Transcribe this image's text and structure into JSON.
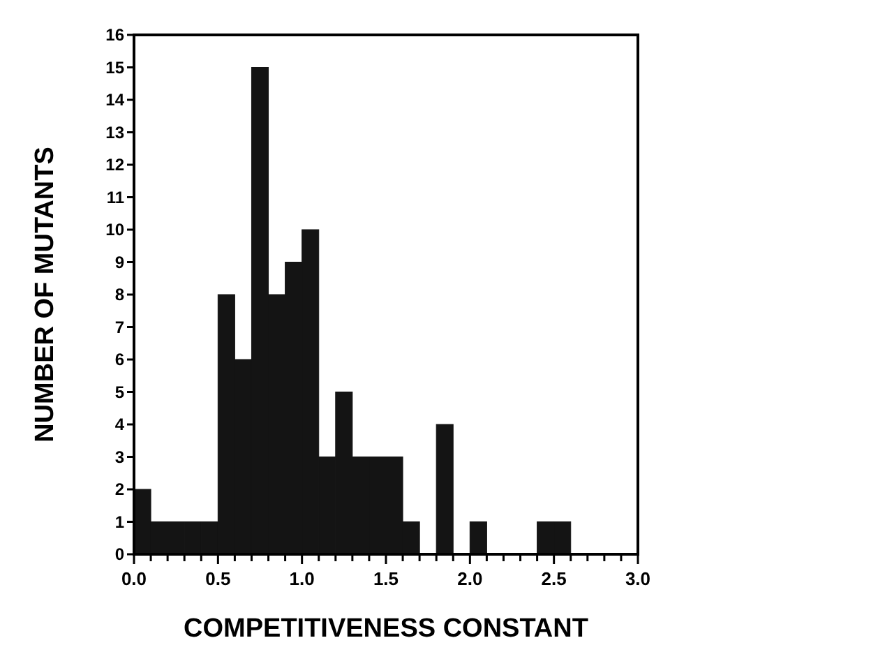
{
  "chart_data": {
    "type": "histogram",
    "xlabel": "COMPETITIVENESS CONSTANT",
    "ylabel": "NUMBER OF MUTANTS",
    "color": "#141414",
    "bins": [
      0,
      0.1,
      0.2,
      0.3,
      0.4,
      0.5,
      0.6,
      0.7,
      0.8,
      0.9,
      1.0,
      1.1,
      1.2,
      1.3,
      1.4,
      1.5,
      1.6,
      1.7,
      1.8,
      1.9,
      2.0,
      2.1,
      2.2,
      2.3,
      2.4,
      2.5,
      2.6,
      2.7,
      2.8,
      2.9,
      3.0
    ],
    "values": [
      2,
      1,
      1,
      1,
      1,
      8,
      6,
      15,
      8,
      9,
      10,
      3,
      5,
      3,
      3,
      3,
      1,
      0,
      4,
      0,
      1,
      0,
      0,
      0,
      1,
      1,
      0,
      0,
      0,
      0
    ],
    "xlim": [
      0,
      3.0
    ],
    "xticks": [
      {
        "value": 0,
        "label": "0.0"
      },
      {
        "value": 0.1,
        "label": null
      },
      {
        "value": 0.2,
        "label": null
      },
      {
        "value": 0.3,
        "label": null
      },
      {
        "value": 0.4,
        "label": null
      },
      {
        "value": 0.5,
        "label": "0.5"
      },
      {
        "value": 0.6,
        "label": null
      },
      {
        "value": 0.7,
        "label": null
      },
      {
        "value": 0.8,
        "label": null
      },
      {
        "value": 0.9,
        "label": null
      },
      {
        "value": 1.0,
        "label": "1.0"
      },
      {
        "value": 1.1,
        "label": null
      },
      {
        "value": 1.2,
        "label": null
      },
      {
        "value": 1.3,
        "label": null
      },
      {
        "value": 1.4,
        "label": null
      },
      {
        "value": 1.5,
        "label": "1.5"
      },
      {
        "value": 1.6,
        "label": null
      },
      {
        "value": 1.7,
        "label": null
      },
      {
        "value": 1.8,
        "label": null
      },
      {
        "value": 1.9,
        "label": null
      },
      {
        "value": 2.0,
        "label": "2.0"
      },
      {
        "value": 2.1,
        "label": null
      },
      {
        "value": 2.2,
        "label": null
      },
      {
        "value": 2.3,
        "label": null
      },
      {
        "value": 2.4,
        "label": null
      },
      {
        "value": 2.5,
        "label": "2.5"
      },
      {
        "value": 2.6,
        "label": null
      },
      {
        "value": 2.7,
        "label": null
      },
      {
        "value": 2.8,
        "label": null
      },
      {
        "value": 2.9,
        "label": null
      },
      {
        "value": 3.0,
        "label": "3.0"
      }
    ],
    "ylim": [
      0,
      16
    ],
    "yticks": [
      0,
      1,
      2,
      3,
      4,
      5,
      6,
      7,
      8,
      9,
      10,
      11,
      12,
      13,
      14,
      15,
      16
    ],
    "grid": false
  }
}
